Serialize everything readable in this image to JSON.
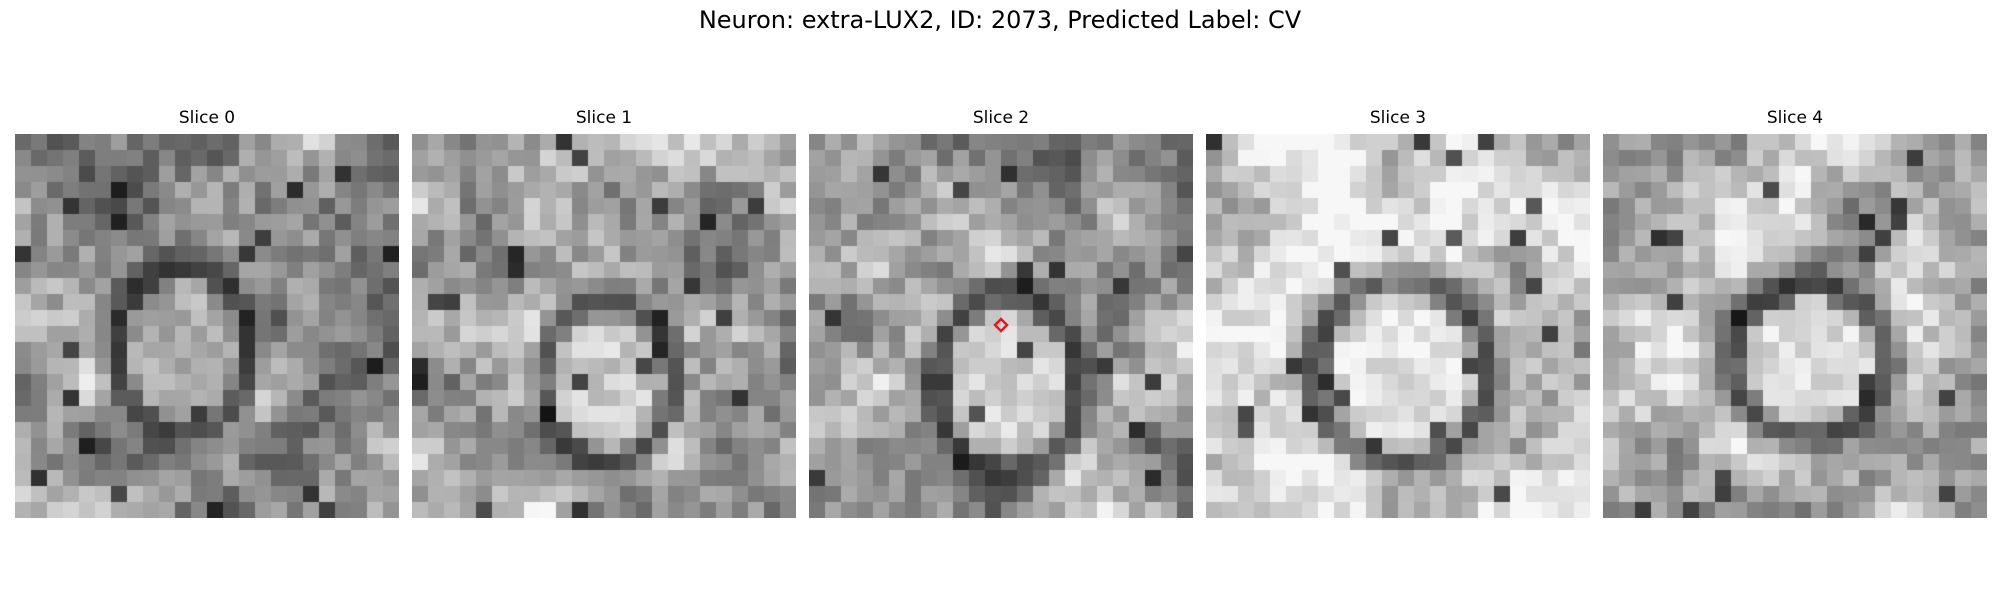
{
  "figure": {
    "title": "Neuron: extra-LUX2, ID: 2073, Predicted Label: CV"
  },
  "panels": [
    {
      "title": "Slice 0"
    },
    {
      "title": "Slice 1"
    },
    {
      "title": "Slice 2"
    },
    {
      "title": "Slice 3"
    },
    {
      "title": "Slice 4"
    }
  ],
  "marker": {
    "panel": "Slice 2",
    "shape": "diamond",
    "color": "#e41a1c"
  }
}
